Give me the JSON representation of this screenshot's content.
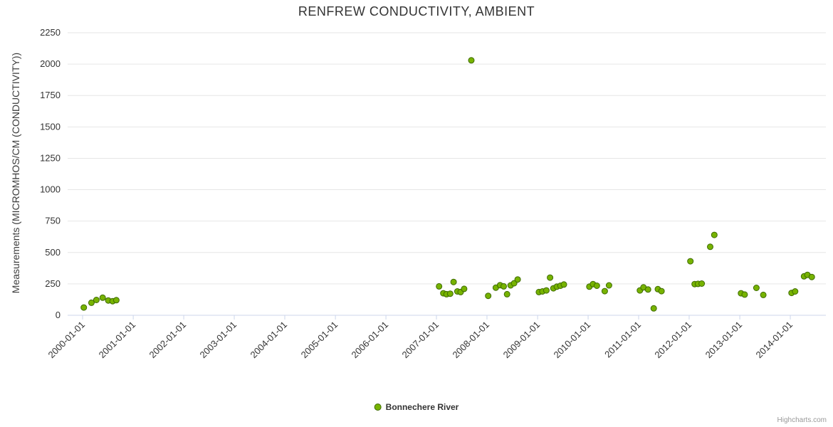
{
  "credit": "Highcharts.com",
  "chart_data": {
    "type": "scatter",
    "title": "RENFREW CONDUCTIVITY, AMBIENT",
    "xlabel": "",
    "ylabel": "Measurements (MICROMHOS/CM (CONDUCTIVITY))",
    "ylim": [
      0,
      2250
    ],
    "y_ticks": [
      0,
      250,
      500,
      750,
      1000,
      1250,
      1500,
      1750,
      2000,
      2250
    ],
    "x_ticks": [
      "2000-01-01",
      "2001-01-01",
      "2002-01-01",
      "2003-01-01",
      "2004-01-01",
      "2005-01-01",
      "2006-01-01",
      "2007-01-01",
      "2008-01-01",
      "2009-01-01",
      "2010-01-01",
      "2011-01-01",
      "2012-01-01",
      "2013-01-01",
      "2014-01-01"
    ],
    "x_range": [
      "1999-09-15",
      "2014-09-15"
    ],
    "grid": "horizontal",
    "grid_color": "#e6e6e6",
    "axis_line_color": "#ccd6eb",
    "tick_label_color": "#333333",
    "legend_position": "bottom-center",
    "series": [
      {
        "name": "Bonnechere River",
        "color": "#77b300",
        "marker_line_color": "#3e6b00",
        "points": [
          {
            "date": "2000-01-10",
            "value": 62
          },
          {
            "date": "2000-03-05",
            "value": 100
          },
          {
            "date": "2000-04-10",
            "value": 122
          },
          {
            "date": "2000-05-25",
            "value": 140
          },
          {
            "date": "2000-07-05",
            "value": 118
          },
          {
            "date": "2000-08-05",
            "value": 112
          },
          {
            "date": "2000-09-01",
            "value": 120
          },
          {
            "date": "2007-01-20",
            "value": 230
          },
          {
            "date": "2007-02-20",
            "value": 175
          },
          {
            "date": "2007-03-15",
            "value": 168
          },
          {
            "date": "2007-04-10",
            "value": 172
          },
          {
            "date": "2007-05-05",
            "value": 265
          },
          {
            "date": "2007-06-01",
            "value": 190
          },
          {
            "date": "2007-06-25",
            "value": 185
          },
          {
            "date": "2007-07-20",
            "value": 210
          },
          {
            "date": "2007-09-10",
            "value": 2030
          },
          {
            "date": "2008-01-10",
            "value": 155
          },
          {
            "date": "2008-03-05",
            "value": 220
          },
          {
            "date": "2008-04-05",
            "value": 240
          },
          {
            "date": "2008-05-01",
            "value": 230
          },
          {
            "date": "2008-05-25",
            "value": 168
          },
          {
            "date": "2008-06-20",
            "value": 238
          },
          {
            "date": "2008-07-15",
            "value": 255
          },
          {
            "date": "2008-08-10",
            "value": 285
          },
          {
            "date": "2009-01-10",
            "value": 185
          },
          {
            "date": "2009-02-05",
            "value": 190
          },
          {
            "date": "2009-03-05",
            "value": 198
          },
          {
            "date": "2009-04-01",
            "value": 300
          },
          {
            "date": "2009-04-25",
            "value": 215
          },
          {
            "date": "2009-05-20",
            "value": 228
          },
          {
            "date": "2009-06-15",
            "value": 235
          },
          {
            "date": "2009-07-10",
            "value": 245
          },
          {
            "date": "2010-01-10",
            "value": 228
          },
          {
            "date": "2010-02-05",
            "value": 248
          },
          {
            "date": "2010-03-05",
            "value": 235
          },
          {
            "date": "2010-05-01",
            "value": 192
          },
          {
            "date": "2010-06-01",
            "value": 238
          },
          {
            "date": "2011-01-10",
            "value": 198
          },
          {
            "date": "2011-02-05",
            "value": 222
          },
          {
            "date": "2011-03-10",
            "value": 205
          },
          {
            "date": "2011-04-20",
            "value": 55
          },
          {
            "date": "2011-05-20",
            "value": 208
          },
          {
            "date": "2011-06-15",
            "value": 192
          },
          {
            "date": "2012-01-10",
            "value": 430
          },
          {
            "date": "2012-02-10",
            "value": 248
          },
          {
            "date": "2012-03-05",
            "value": 250
          },
          {
            "date": "2012-04-01",
            "value": 252
          },
          {
            "date": "2012-06-01",
            "value": 545
          },
          {
            "date": "2012-07-01",
            "value": 640
          },
          {
            "date": "2013-01-10",
            "value": 175
          },
          {
            "date": "2013-02-05",
            "value": 165
          },
          {
            "date": "2013-05-01",
            "value": 218
          },
          {
            "date": "2013-06-20",
            "value": 162
          },
          {
            "date": "2014-01-10",
            "value": 178
          },
          {
            "date": "2014-02-05",
            "value": 190
          },
          {
            "date": "2014-04-10",
            "value": 310
          },
          {
            "date": "2014-05-05",
            "value": 322
          },
          {
            "date": "2014-06-05",
            "value": 305
          }
        ]
      }
    ]
  }
}
